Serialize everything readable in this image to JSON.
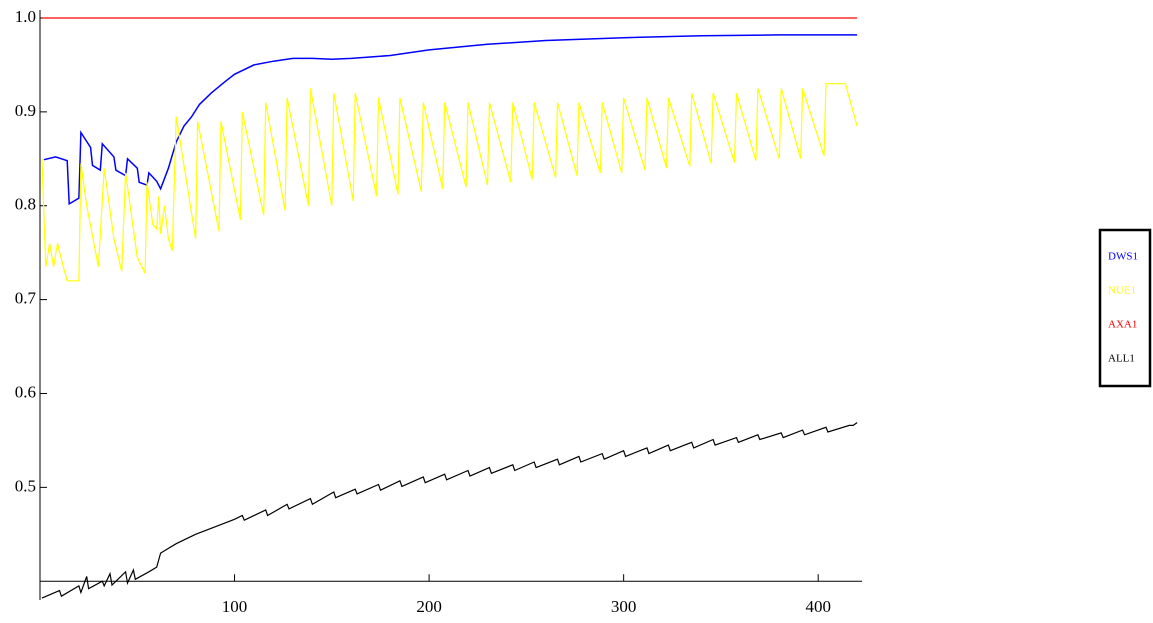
{
  "chart_data": {
    "type": "line",
    "xlim": [
      0,
      422
    ],
    "ylim": [
      0.38,
      1.0
    ],
    "x_axis_at": 0.4,
    "xticks": [
      100,
      200,
      300,
      400
    ],
    "yticks": [
      0.5,
      0.6,
      0.7,
      0.8,
      0.9,
      {
        "value": 1,
        "label": "1.0"
      }
    ],
    "legend": "right",
    "series": [
      {
        "name": "DWS1",
        "color": "#0000ff",
        "x": [
          2,
          8,
          14,
          15,
          20,
          21,
          26,
          27,
          31,
          32,
          38,
          39,
          44,
          45,
          50,
          51,
          55,
          56,
          60,
          62,
          66,
          70,
          74,
          78,
          82,
          88,
          95,
          100,
          110,
          120,
          130,
          140,
          150,
          160,
          180,
          200,
          230,
          260,
          300,
          340,
          380,
          420
        ],
        "values": [
          0.849,
          0.852,
          0.848,
          0.802,
          0.808,
          0.878,
          0.862,
          0.843,
          0.838,
          0.866,
          0.852,
          0.838,
          0.832,
          0.85,
          0.84,
          0.825,
          0.822,
          0.835,
          0.826,
          0.818,
          0.84,
          0.868,
          0.885,
          0.895,
          0.908,
          0.92,
          0.932,
          0.94,
          0.95,
          0.954,
          0.957,
          0.957,
          0.956,
          0.957,
          0.96,
          0.966,
          0.972,
          0.976,
          0.979,
          0.981,
          0.982,
          0.982
        ]
      },
      {
        "name": "NUE1",
        "color": "#ffff00",
        "x": [
          1,
          3,
          5,
          7,
          9,
          12,
          14,
          20,
          21,
          24,
          30,
          33,
          38,
          42,
          44,
          50,
          54,
          55,
          58,
          60,
          61,
          62,
          64,
          66,
          68,
          70,
          80,
          81,
          92,
          93,
          103,
          104,
          115,
          116,
          126,
          127,
          138,
          139,
          150,
          151,
          161,
          162,
          173,
          174,
          184,
          185,
          196,
          197,
          207,
          208,
          219,
          220,
          230,
          231,
          242,
          243,
          253,
          254,
          265,
          266,
          276,
          277,
          288,
          289,
          299,
          300,
          311,
          312,
          322,
          323,
          334,
          335,
          345,
          346,
          357,
          358,
          368,
          369,
          380,
          381,
          391,
          392,
          403,
          404,
          414,
          420
        ],
        "values": [
          0.85,
          0.735,
          0.76,
          0.735,
          0.76,
          0.735,
          0.72,
          0.72,
          0.845,
          0.8,
          0.735,
          0.84,
          0.765,
          0.73,
          0.835,
          0.745,
          0.728,
          0.825,
          0.78,
          0.775,
          0.81,
          0.77,
          0.8,
          0.765,
          0.752,
          0.895,
          0.765,
          0.89,
          0.773,
          0.89,
          0.785,
          0.9,
          0.79,
          0.91,
          0.795,
          0.915,
          0.8,
          0.925,
          0.8,
          0.92,
          0.805,
          0.92,
          0.81,
          0.915,
          0.812,
          0.915,
          0.815,
          0.91,
          0.818,
          0.91,
          0.82,
          0.91,
          0.822,
          0.91,
          0.825,
          0.91,
          0.828,
          0.91,
          0.83,
          0.91,
          0.832,
          0.91,
          0.835,
          0.91,
          0.835,
          0.915,
          0.838,
          0.915,
          0.84,
          0.915,
          0.842,
          0.92,
          0.845,
          0.92,
          0.846,
          0.92,
          0.848,
          0.925,
          0.85,
          0.925,
          0.85,
          0.925,
          0.853,
          0.93,
          0.93,
          0.885
        ]
      },
      {
        "name": "AXA1",
        "color": "#ff0000",
        "x": [
          1,
          420
        ],
        "values": [
          1,
          1
        ]
      },
      {
        "name": "ALL1",
        "color": "#000000",
        "x": [
          1,
          10,
          11,
          20,
          21,
          24,
          25,
          32,
          33,
          36,
          37,
          44,
          45,
          48,
          49,
          56,
          60,
          62,
          66,
          70,
          80,
          90,
          100,
          104,
          105,
          116,
          117,
          127,
          128,
          139,
          140,
          151,
          152,
          162,
          163,
          174,
          175,
          185,
          186,
          197,
          198,
          208,
          209,
          220,
          221,
          231,
          232,
          243,
          244,
          254,
          255,
          266,
          267,
          277,
          278,
          289,
          290,
          300,
          301,
          312,
          313,
          323,
          324,
          335,
          336,
          346,
          347,
          358,
          359,
          369,
          370,
          381,
          382,
          392,
          393,
          404,
          405,
          416,
          418,
          420
        ],
        "values": [
          0.382,
          0.39,
          0.384,
          0.395,
          0.388,
          0.405,
          0.392,
          0.4,
          0.395,
          0.408,
          0.396,
          0.41,
          0.398,
          0.412,
          0.402,
          0.41,
          0.415,
          0.43,
          0.435,
          0.44,
          0.45,
          0.458,
          0.466,
          0.47,
          0.465,
          0.476,
          0.47,
          0.482,
          0.477,
          0.488,
          0.482,
          0.495,
          0.489,
          0.498,
          0.493,
          0.503,
          0.497,
          0.507,
          0.501,
          0.511,
          0.505,
          0.514,
          0.508,
          0.518,
          0.512,
          0.521,
          0.515,
          0.524,
          0.518,
          0.527,
          0.521,
          0.53,
          0.524,
          0.533,
          0.527,
          0.536,
          0.53,
          0.539,
          0.533,
          0.542,
          0.536,
          0.545,
          0.539,
          0.548,
          0.542,
          0.551,
          0.545,
          0.553,
          0.548,
          0.556,
          0.551,
          0.558,
          0.553,
          0.561,
          0.556,
          0.564,
          0.559,
          0.566,
          0.566,
          0.569
        ]
      }
    ]
  }
}
